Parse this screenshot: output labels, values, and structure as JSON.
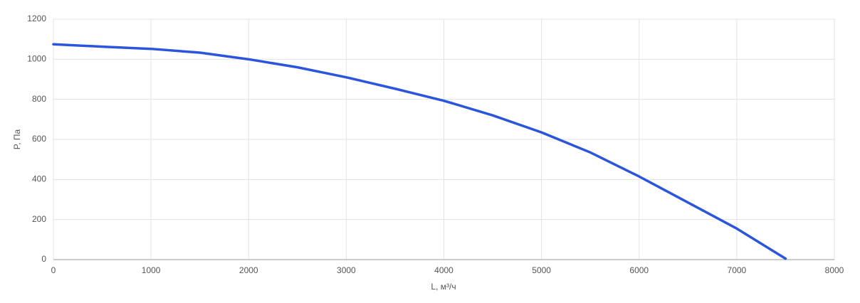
{
  "chart_data": {
    "type": "line",
    "x_label": "L, м³/ч",
    "y_label": "P, Па",
    "x": [
      0,
      500,
      1000,
      1500,
      2000,
      2500,
      3000,
      3500,
      4000,
      4500,
      5000,
      5500,
      6000,
      6500,
      7000,
      7500
    ],
    "series": [
      {
        "color": "#2a55dc",
        "values": [
          1075,
          1063,
          1052,
          1033,
          1000,
          960,
          910,
          853,
          793,
          720,
          635,
          535,
          415,
          285,
          155,
          5
        ]
      }
    ],
    "xlim": [
      0,
      8000
    ],
    "xticks": [
      0,
      1000,
      2000,
      3000,
      4000,
      5000,
      6000,
      7000,
      8000
    ],
    "ylim": [
      0,
      1200
    ],
    "yticks": [
      0,
      200,
      400,
      600,
      800,
      1000,
      1200
    ],
    "grid": true
  }
}
